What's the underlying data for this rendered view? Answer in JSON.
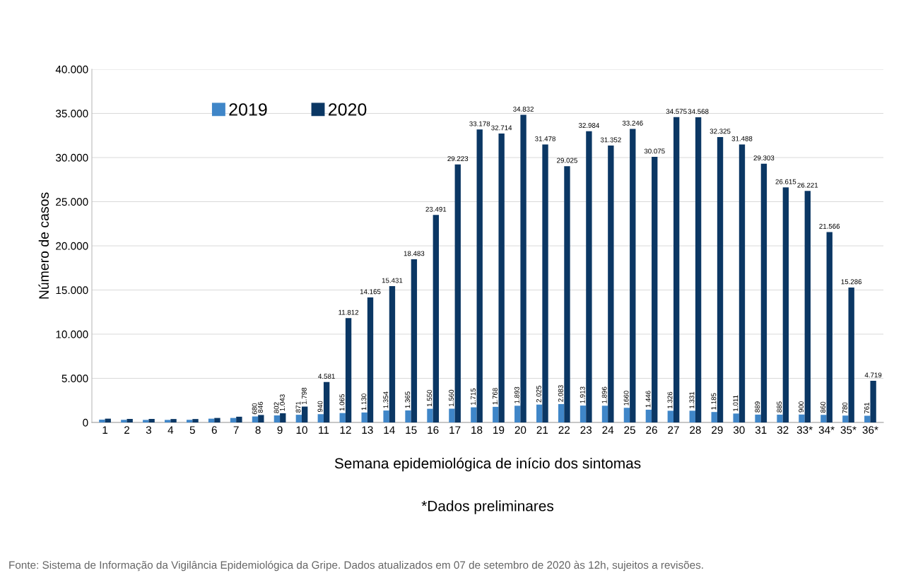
{
  "chart_data": {
    "type": "bar",
    "xlabel": "Semana epidemiológica de início dos sintomas",
    "ylabel": "Número de casos",
    "categories": [
      "1",
      "2",
      "3",
      "4",
      "5",
      "6",
      "7",
      "8",
      "9",
      "10",
      "11",
      "12",
      "13",
      "14",
      "15",
      "16",
      "17",
      "18",
      "19",
      "20",
      "21",
      "22",
      "23",
      "24",
      "25",
      "26",
      "27",
      "28",
      "29",
      "30",
      "31",
      "32",
      "33*",
      "34*",
      "35*",
      "36*"
    ],
    "series": [
      {
        "name": "2019",
        "color": "#3f86c8",
        "values": [
          320,
          300,
          290,
          290,
          300,
          430,
          510,
          680,
          802,
          871,
          940,
          1065,
          1130,
          1354,
          1365,
          1550,
          1560,
          1715,
          1768,
          1893,
          2025,
          2083,
          1913,
          1896,
          1660,
          1446,
          1326,
          1331,
          1185,
          1011,
          889,
          885,
          900,
          860,
          780,
          761
        ],
        "value_labels": [
          null,
          null,
          null,
          null,
          null,
          null,
          null,
          "680",
          "802",
          "871",
          "940",
          "1.065",
          "1.130",
          "1.354",
          "1.365",
          "1.550",
          "1.560",
          "1.715",
          "1.768",
          "1.893",
          "2.025",
          "2.083",
          "1.913",
          "1.896",
          "1660",
          "1.446",
          "1.326",
          "1.331",
          "1.185",
          "1.011",
          "889",
          "885",
          "900",
          "860",
          "780",
          "761"
        ]
      },
      {
        "name": "2020",
        "color": "#0b3764",
        "values": [
          430,
          400,
          400,
          390,
          390,
          510,
          650,
          846,
          1043,
          1798,
          4581,
          11812,
          14165,
          15431,
          18483,
          23491,
          29223,
          33178,
          32714,
          34832,
          31478,
          29025,
          32984,
          31352,
          33246,
          30075,
          34575,
          34568,
          32325,
          31488,
          29303,
          26615,
          26221,
          21566,
          15286,
          4719
        ],
        "value_labels": [
          null,
          null,
          null,
          null,
          null,
          null,
          null,
          "846",
          "1.043",
          "1.798",
          "4.581",
          "11.812",
          "14.165",
          "15.431",
          "18.483",
          "23.491",
          "29.223",
          "33.178",
          "32.714",
          "34.832",
          "31.478",
          "29.025",
          "32.984",
          "31.352",
          "33.246",
          "30.075",
          "34.575",
          "34.568",
          "32.325",
          "31.488",
          "29.303",
          "26.615",
          "26.221",
          "21.566",
          "15.286",
          "4.719"
        ]
      }
    ],
    "ylim": [
      0,
      40000
    ],
    "yticks": [
      {
        "value": 0,
        "label": "0"
      },
      {
        "value": 5000,
        "label": "5.000"
      },
      {
        "value": 10000,
        "label": "10.000"
      },
      {
        "value": 15000,
        "label": "15.000"
      },
      {
        "value": 20000,
        "label": "20.000"
      },
      {
        "value": 25000,
        "label": "25.000"
      },
      {
        "value": 30000,
        "label": "30.000"
      },
      {
        "value": 35000,
        "label": "35.000"
      },
      {
        "value": 40000,
        "label": "40.000"
      }
    ],
    "grid": "y",
    "legend": "top",
    "annotations": [
      "*Dados preliminares",
      "Fonte: Sistema de Informação da Vigilância Epidemiológica da Gripe. Dados atualizados em 07 de setembro de 2020 às 12h, sujeitos a revisões."
    ]
  }
}
